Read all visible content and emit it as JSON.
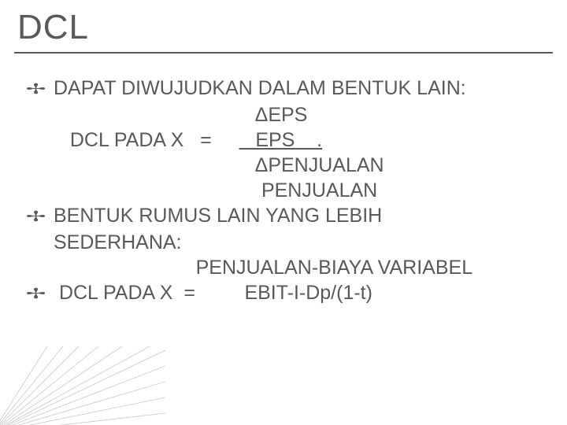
{
  "title": "DCL",
  "lines": [
    {
      "bullet": true,
      "text": "DAPAT DIWUJUDKAN DALAM BENTUK LAIN:"
    },
    {
      "bullet": false,
      "text": "                                     ΔEPS"
    },
    {
      "bullet": false,
      "text": "   DCL PADA X   =        EPS    .",
      "underlineRange": [
        22,
        33
      ]
    },
    {
      "bullet": false,
      "text": "                                     ΔPENJUALAN"
    },
    {
      "bullet": false,
      "text": "                                      PENJUALAN"
    },
    {
      "bullet": true,
      "text": "BENTUK RUMUS LAIN YANG LEBIH"
    },
    {
      "bullet": false,
      "text": "SEDERHANA:"
    },
    {
      "bullet": false,
      "text": "                          PENJUALAN-BIAYA VARIABEL"
    },
    {
      "bullet": true,
      "text": " DCL PADA X  =         EBIT-I-Dp/(1-t)"
    }
  ],
  "bulletGlyph": "🞐",
  "colors": {
    "text": "#595959",
    "background": "#ffffff",
    "cornerLines": "#b0b0b0"
  }
}
